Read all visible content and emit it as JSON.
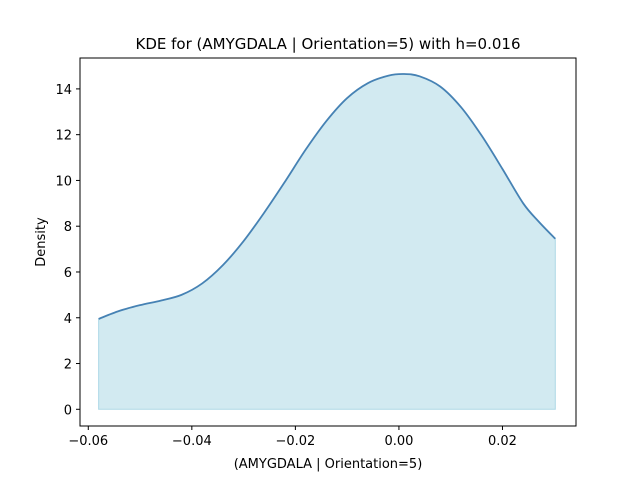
{
  "chart_data": {
    "type": "area",
    "title": "KDE for (AMYGDALA | Orientation=5) with h=0.016",
    "xlabel": "(AMYGDALA | Orientation=5)",
    "ylabel": "Density",
    "xlim": [
      -0.0616,
      0.0342
    ],
    "ylim": [
      -0.73,
      15.35
    ],
    "xticks": [
      -0.06,
      -0.04,
      -0.02,
      0.0,
      0.02
    ],
    "xtick_labels": [
      "−0.06",
      "−0.04",
      "−0.02",
      "0.00",
      "0.02"
    ],
    "yticks": [
      0,
      2,
      4,
      6,
      8,
      10,
      12,
      14
    ],
    "ytick_labels": [
      "0",
      "2",
      "4",
      "6",
      "8",
      "10",
      "12",
      "14"
    ],
    "grid": false,
    "line_color": "#4682b4",
    "fill_color": "#add8e6",
    "series": [
      {
        "x": [
          -0.058,
          -0.054,
          -0.05,
          -0.046,
          -0.042,
          -0.038,
          -0.034,
          -0.03,
          -0.026,
          -0.022,
          -0.018,
          -0.014,
          -0.01,
          -0.006,
          -0.002,
          0.001,
          0.004,
          0.008,
          0.012,
          0.016,
          0.02,
          0.024,
          0.027,
          0.0302
        ],
        "y": [
          3.95,
          4.3,
          4.55,
          4.75,
          5.0,
          5.5,
          6.3,
          7.35,
          8.6,
          9.95,
          11.35,
          12.6,
          13.6,
          14.25,
          14.58,
          14.65,
          14.55,
          14.1,
          13.2,
          11.95,
          10.5,
          9.0,
          8.2,
          7.45
        ]
      }
    ]
  }
}
